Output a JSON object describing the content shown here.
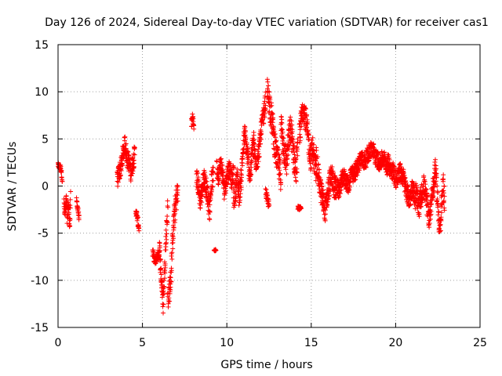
{
  "chart_data": {
    "type": "scatter",
    "title": "Day 126 of 2024, Sidereal Day-to-day VTEC variation (SDTVAR) for receiver cas1",
    "xlabel": "GPS time / hours",
    "ylabel": "SDTVAR / TECUs",
    "xlim": [
      0,
      25
    ],
    "ylim": [
      -15,
      15
    ],
    "xticks": [
      0,
      5,
      10,
      15,
      20,
      25
    ],
    "yticks": [
      -15,
      -10,
      -5,
      0,
      5,
      10,
      15
    ],
    "grid": true,
    "marker": "+",
    "series": [
      {
        "name": "SDTVAR",
        "color": "#ff0000",
        "segments": [
          {
            "x0": 0.0,
            "x1": 0.25,
            "y": [
              2.2,
              2.1,
              1.9,
              2.0,
              1.5,
              0.5
            ],
            "spread": 0.3
          },
          {
            "x0": 0.35,
            "x1": 0.75,
            "y": [
              -2.0,
              -3.0,
              -2.5,
              -1.5,
              -3.5,
              -2.0,
              -2.8,
              -4.0,
              -1.0
            ],
            "spread": 0.9
          },
          {
            "x0": 1.1,
            "x1": 1.25,
            "y": [
              -1.5,
              -2.5,
              -3.5
            ],
            "spread": 0.4
          },
          {
            "x0": 3.5,
            "x1": 4.55,
            "y": [
              0.5,
              1.5,
              2.0,
              3.5,
              4.5,
              3.0,
              2.5,
              1.5,
              2.5,
              3.5
            ],
            "spread": 1.0
          },
          {
            "x0": 4.6,
            "x1": 4.8,
            "y": [
              -2.5,
              -3.5,
              -4.5
            ],
            "spread": 0.5
          },
          {
            "x0": 5.6,
            "x1": 6.0,
            "y": [
              -7.0,
              -8.0,
              -7.5,
              -7.0
            ],
            "spread": 0.5
          },
          {
            "x0": 6.0,
            "x1": 6.5,
            "y": [
              -6.5,
              -8.0,
              -9.5,
              -11.0,
              -12.5,
              -10.5,
              -8.0,
              -6.0,
              -4.0,
              -2.0
            ],
            "spread": 1.2
          },
          {
            "x0": 6.5,
            "x1": 7.1,
            "y": [
              -12.0,
              -11.0,
              -9.5,
              -5.0,
              -3.0,
              -1.5,
              -0.5
            ],
            "spread": 1.3
          },
          {
            "x0": 7.9,
            "x1": 8.05,
            "y": [
              6.5,
              7.5,
              6.0
            ],
            "spread": 0.6
          },
          {
            "x0": 8.2,
            "x1": 9.2,
            "y": [
              1.0,
              0.0,
              -1.5,
              -0.5,
              1.0,
              0.0,
              -1.0,
              -2.5,
              0.5,
              1.0
            ],
            "spread": 1.1
          },
          {
            "x0": 9.25,
            "x1": 9.35,
            "y": [
              -6.8
            ],
            "spread": 0.1
          },
          {
            "x0": 9.4,
            "x1": 10.4,
            "y": [
              2.0,
              1.0,
              2.5,
              1.5,
              -0.5,
              0.5,
              1.5,
              2.0,
              0.5,
              1.5
            ],
            "spread": 1.0
          },
          {
            "x0": 10.4,
            "x1": 11.6,
            "y": [
              -1.5,
              -0.5,
              1.0,
              -1.0,
              0.5,
              3.5,
              5.5,
              4.0,
              2.5,
              1.0,
              3.5,
              5.0
            ],
            "spread": 1.2
          },
          {
            "x0": 11.6,
            "x1": 12.3,
            "y": [
              4.0,
              2.5,
              3.0,
              4.5,
              6.5,
              7.5,
              9.0
            ],
            "spread": 1.0
          },
          {
            "x0": 12.3,
            "x1": 12.5,
            "y": [
              -0.5,
              -1.5,
              -2.0
            ],
            "spread": 0.5
          },
          {
            "x0": 12.4,
            "x1": 13.2,
            "y": [
              10.0,
              9.0,
              7.5,
              6.0,
              4.0,
              3.0,
              2.0,
              1.0
            ],
            "spread": 1.5
          },
          {
            "x0": 13.2,
            "x1": 14.2,
            "y": [
              6.5,
              5.0,
              3.5,
              2.5,
              4.5,
              6.0,
              5.0,
              3.0,
              1.5,
              4.0
            ],
            "spread": 1.6
          },
          {
            "x0": 14.2,
            "x1": 14.4,
            "y": [
              -2.3,
              -2.4
            ],
            "spread": 0.2
          },
          {
            "x0": 14.3,
            "x1": 15.3,
            "y": [
              5.5,
              7.0,
              8.5,
              7.5,
              6.0,
              4.5,
              3.0,
              4.0,
              2.5,
              1.5
            ],
            "spread": 1.4
          },
          {
            "x0": 15.3,
            "x1": 16.5,
            "y": [
              3.0,
              1.0,
              -0.5,
              -1.5,
              -2.5,
              -1.0,
              0.5,
              1.0,
              0.0,
              -0.5
            ],
            "spread": 1.3
          },
          {
            "x0": 16.5,
            "x1": 17.5,
            "y": [
              0.0,
              -0.5,
              0.5,
              1.0,
              0.5,
              0.0,
              1.5,
              1.0
            ],
            "spread": 0.9
          },
          {
            "x0": 17.5,
            "x1": 19.5,
            "y": [
              1.0,
              2.0,
              3.0,
              2.5,
              3.5,
              4.0,
              3.0,
              2.5,
              3.0,
              2.0
            ],
            "spread": 0.9
          },
          {
            "x0": 19.5,
            "x1": 21.2,
            "y": [
              2.5,
              2.0,
              1.5,
              0.5,
              1.5,
              1.0,
              -0.5,
              -1.5,
              0.0,
              -2.0
            ],
            "spread": 1.0
          },
          {
            "x0": 21.2,
            "x1": 22.3,
            "y": [
              -0.5,
              -2.5,
              -1.0,
              0.0,
              -1.5,
              -3.5,
              -1.0,
              0.5
            ],
            "spread": 1.2
          },
          {
            "x0": 22.3,
            "x1": 22.9,
            "y": [
              2.0,
              1.0,
              -1.0,
              -3.5,
              -4.5,
              -2.0,
              0.0,
              -1.5
            ],
            "spread": 1.4
          }
        ]
      }
    ]
  }
}
